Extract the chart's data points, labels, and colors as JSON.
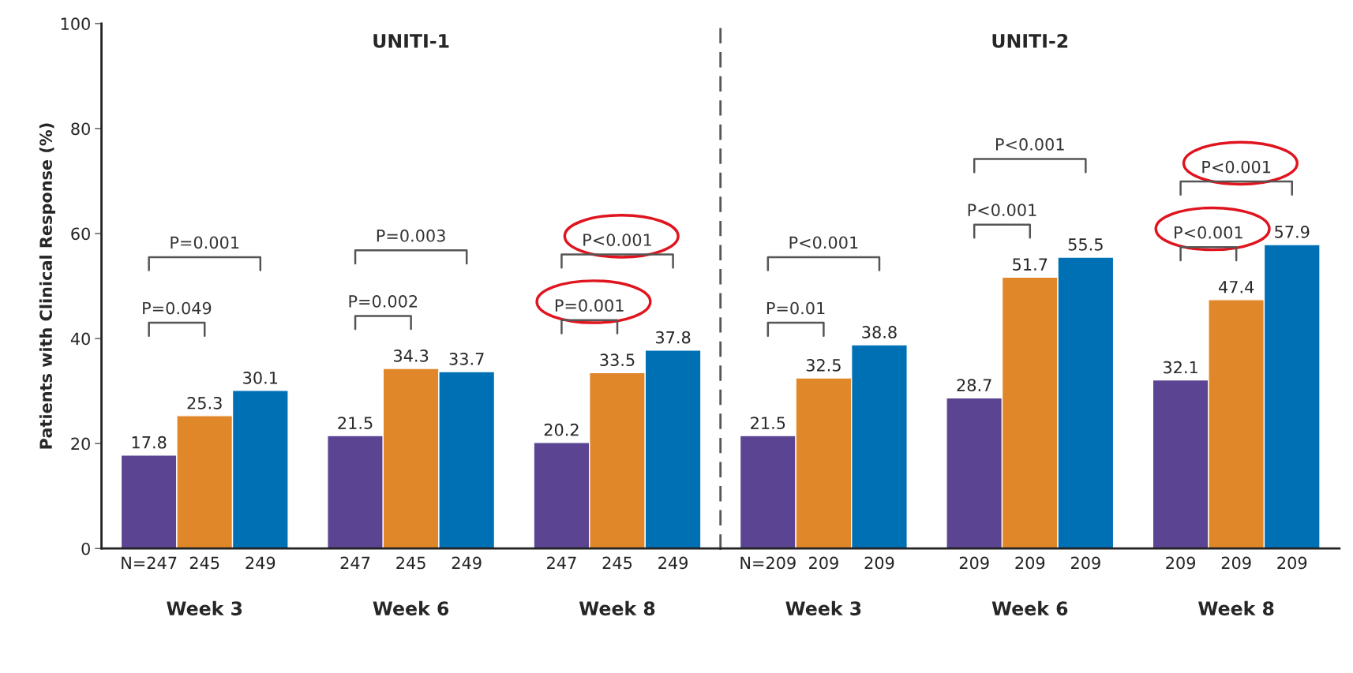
{
  "chart_data": [
    {
      "type": "bar",
      "title": "UNITI-1",
      "ylabel": "Patients with Clinical Response (%)",
      "categories": [
        "Week 3",
        "Week 6",
        "Week 8"
      ],
      "series": [
        {
          "color": "#5b4593",
          "values": [
            17.8,
            21.5,
            20.2
          ]
        },
        {
          "color": "#e0872a",
          "values": [
            25.3,
            34.3,
            33.5
          ]
        },
        {
          "color": "#0070b5",
          "values": [
            30.1,
            33.7,
            37.8
          ]
        }
      ],
      "ylim": [
        0,
        100
      ],
      "yticks": [
        0,
        20,
        40,
        60,
        80,
        100
      ],
      "data_labels": true,
      "grid": false,
      "legend": false,
      "annotations": [
        "P=0.049",
        "P=0.001",
        "P=0.002",
        "P=0.003",
        "P=0.001",
        "P<0.001",
        "N=247",
        "245",
        "249",
        "247",
        "245",
        "249",
        "247",
        "245",
        "249"
      ]
    },
    {
      "type": "bar",
      "title": "UNITI-2",
      "categories": [
        "Week 3",
        "Week 6",
        "Week 8"
      ],
      "series": [
        {
          "color": "#5b4593",
          "values": [
            21.5,
            28.7,
            32.1
          ]
        },
        {
          "color": "#e0872a",
          "values": [
            32.5,
            51.7,
            47.4
          ]
        },
        {
          "color": "#0070b5",
          "values": [
            38.8,
            55.5,
            57.9
          ]
        }
      ],
      "ylim": [
        0,
        100
      ],
      "yticks": [
        0,
        20,
        40,
        60,
        80,
        100
      ],
      "data_labels": true,
      "grid": false,
      "legend": false,
      "tick_labels": "x",
      "annotations": [
        "P=0.01",
        "P<0.001",
        "P<0.001",
        "P<0.001",
        "P<0.001",
        "P<0.001",
        "N=209",
        "209",
        "209",
        "209",
        "209",
        "209",
        "209",
        "209",
        "209"
      ]
    }
  ]
}
